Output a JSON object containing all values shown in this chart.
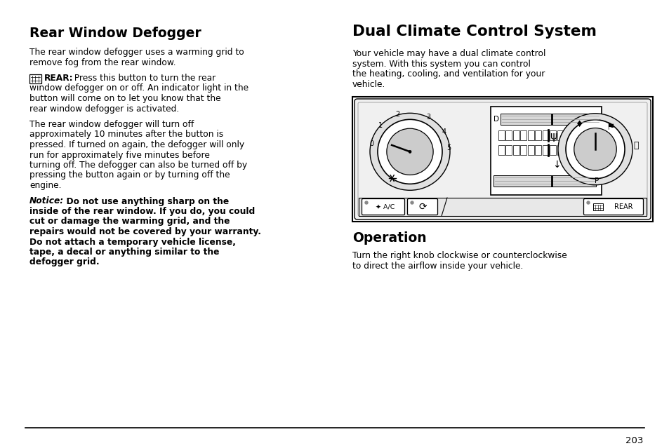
{
  "page_number": "203",
  "bg": "#ffffff",
  "tc": "#000000",
  "figsize": [
    9.54,
    6.36
  ],
  "dpi": 100,
  "left_heading": "Rear Window Defogger",
  "right_heading": "Dual Climate Control System",
  "left_para1_lines": [
    "The rear window defogger uses a warming grid to",
    "remove fog from the rear window."
  ],
  "left_para2_lines": [
    "window defogger on or off. An indicator light in the",
    "button will come on to let you know that the",
    "rear window defogger is activated."
  ],
  "left_para3_lines": [
    "The rear window defogger will turn off",
    "approximately 10 minutes after the button is",
    "pressed. If turned on again, the defogger will only",
    "run for approximately five minutes before",
    "turning off. The defogger can also be turned off by",
    "pressing the button again or by turning off the",
    "engine."
  ],
  "left_notice_lines": [
    "inside of the rear window. If you do, you could",
    "cut or damage the warming grid, and the",
    "repairs would not be covered by your warranty.",
    "Do not attach a temporary vehicle license,",
    "tape, a decal or anything similar to the",
    "defogger grid."
  ],
  "right_para1_lines": [
    "Your vehicle may have a dual climate control",
    "system. With this system you can control",
    "the heating, cooling, and ventilation for your",
    "vehicle."
  ],
  "right_heading2": "Operation",
  "right_para2_lines": [
    "Turn the right knob clockwise or counterclockwise",
    "to direct the airflow inside your vehicle."
  ]
}
